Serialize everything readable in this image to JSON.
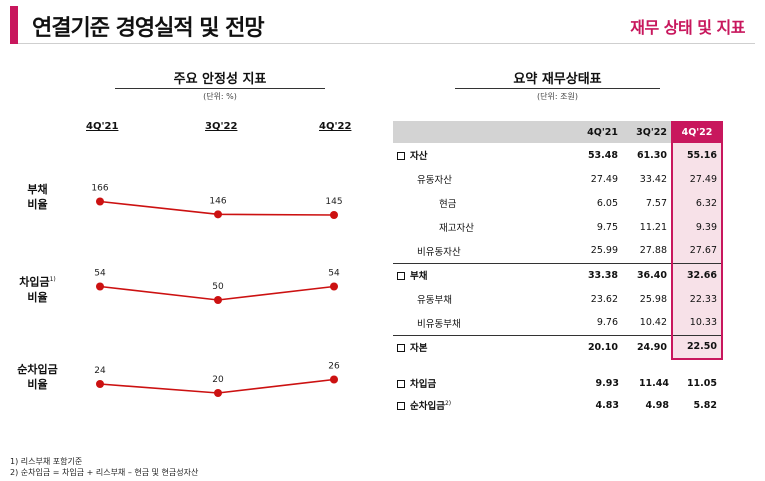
{
  "header": {
    "title": "연결기준 경영실적 및 전망",
    "right_title": "재무 상태 및 지표",
    "accent_color": "#c8175d"
  },
  "left": {
    "title": "주요 안정성 지표",
    "unit": "(단위: %)",
    "periods": [
      "4Q'21",
      "3Q'22",
      "4Q'22"
    ],
    "rows": [
      {
        "label_line1": "부채",
        "label_line2": "비율",
        "sup": "",
        "values": [
          166,
          146,
          145
        ]
      },
      {
        "label_line1": "차입금",
        "label_line2": "비율",
        "sup": "1)",
        "values": [
          54,
          50,
          54
        ]
      },
      {
        "label_line1": "순차입금",
        "label_line2": "비율",
        "sup": "",
        "values": [
          24,
          20,
          26
        ]
      }
    ],
    "line_color": "#cc1111"
  },
  "right": {
    "title": "요약 재무상태표",
    "unit": "(단위: 조원)",
    "columns": [
      "4Q'21",
      "3Q'22",
      "4Q'22"
    ],
    "rows": [
      {
        "label": "자산",
        "values": [
          "53.48",
          "61.30",
          "55.16"
        ]
      },
      {
        "label": "유동자산",
        "values": [
          "27.49",
          "33.42",
          "27.49"
        ]
      },
      {
        "label": "현금",
        "values": [
          "6.05",
          "7.57",
          "6.32"
        ]
      },
      {
        "label": "재고자산",
        "values": [
          "9.75",
          "11.21",
          "9.39"
        ]
      },
      {
        "label": "비유동자산",
        "values": [
          "25.99",
          "27.88",
          "27.67"
        ]
      },
      {
        "label": "부채",
        "values": [
          "33.38",
          "36.40",
          "32.66"
        ]
      },
      {
        "label": "유동부채",
        "values": [
          "23.62",
          "25.98",
          "22.33"
        ]
      },
      {
        "label": "비유동부채",
        "values": [
          "9.76",
          "10.42",
          "10.33"
        ]
      },
      {
        "label": "자본",
        "values": [
          "20.10",
          "24.90",
          "22.50"
        ]
      }
    ],
    "extra": [
      {
        "label": "차입금",
        "sup": "",
        "values": [
          "9.93",
          "11.44",
          "11.05"
        ]
      },
      {
        "label": "순차입금",
        "sup": "2)",
        "values": [
          "4.83",
          "4.98",
          "5.82"
        ]
      }
    ]
  },
  "footnotes": [
    "1) 리스부채 포함기준",
    "2) 순차입금 = 차입금 + 리스부채 – 현금 및 현금성자산"
  ]
}
